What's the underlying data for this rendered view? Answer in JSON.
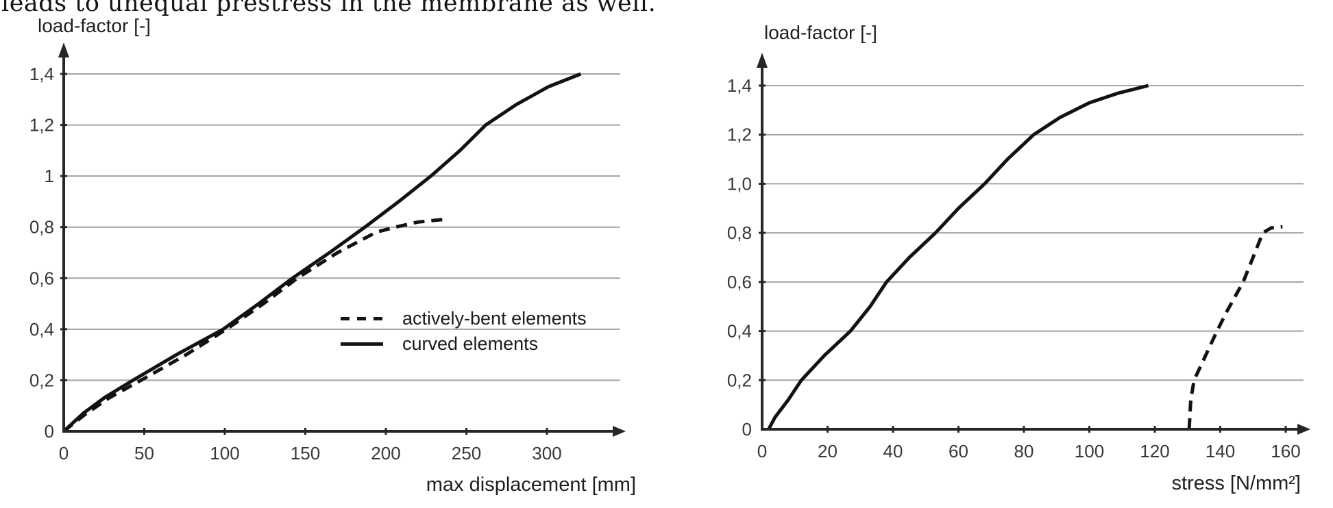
{
  "page": {
    "top_text": "leads to unequal prestress in the membrane as well."
  },
  "chart_data": [
    {
      "type": "line",
      "title": "load-factor [-]",
      "xlabel": "max displacement [mm]",
      "ylabel": "load-factor [-]",
      "xlim": [
        0,
        350
      ],
      "ylim": [
        0,
        1.5
      ],
      "grid": true,
      "legend_position": "inside-right-middle",
      "x_ticks": [
        {
          "v": 0,
          "label": "0"
        },
        {
          "v": 50,
          "label": "50"
        },
        {
          "v": 100,
          "label": "100"
        },
        {
          "v": 150,
          "label": "150"
        },
        {
          "v": 200,
          "label": "200"
        },
        {
          "v": 250,
          "label": "250"
        },
        {
          "v": 300,
          "label": "300"
        }
      ],
      "y_ticks": [
        {
          "v": 0,
          "label": "0"
        },
        {
          "v": 0.2,
          "label": "0,2"
        },
        {
          "v": 0.4,
          "label": "0,4"
        },
        {
          "v": 0.6,
          "label": "0,6"
        },
        {
          "v": 0.8,
          "label": "0,8"
        },
        {
          "v": 1,
          "label": "1"
        },
        {
          "v": 1.2,
          "label": "1,2"
        },
        {
          "v": 1.4,
          "label": "1,4"
        }
      ],
      "series": [
        {
          "name": "actively-bent elements",
          "style": "dashed",
          "points": [
            [
              0,
              0
            ],
            [
              13,
              0.065
            ],
            [
              28,
              0.13
            ],
            [
              48,
              0.2
            ],
            [
              76,
              0.3
            ],
            [
              101,
              0.4
            ],
            [
              124,
              0.5
            ],
            [
              145,
              0.6
            ],
            [
              170,
              0.7
            ],
            [
              194,
              0.78
            ],
            [
              206,
              0.8
            ],
            [
              220,
              0.82
            ],
            [
              236,
              0.83
            ]
          ]
        },
        {
          "name": "curved elements",
          "style": "solid",
          "points": [
            [
              0,
              0
            ],
            [
              12,
              0.07
            ],
            [
              26,
              0.135
            ],
            [
              43,
              0.2
            ],
            [
              70,
              0.3
            ],
            [
              99,
              0.4
            ],
            [
              121,
              0.5
            ],
            [
              142,
              0.6
            ],
            [
              165,
              0.7
            ],
            [
              187,
              0.8
            ],
            [
              208,
              0.9
            ],
            [
              228,
              1.0
            ],
            [
              246,
              1.1
            ],
            [
              262,
              1.2
            ],
            [
              281,
              1.28
            ],
            [
              301,
              1.35
            ],
            [
              321,
              1.4
            ]
          ]
        }
      ]
    },
    {
      "type": "line",
      "title": "load-factor [-]",
      "xlabel": "stress [N/mm²]",
      "ylabel": "load-factor [-]",
      "xlim": [
        0,
        170
      ],
      "ylim": [
        0,
        1.5
      ],
      "grid": true,
      "legend_position": "none",
      "x_ticks": [
        {
          "v": 0,
          "label": "0"
        },
        {
          "v": 20,
          "label": "20"
        },
        {
          "v": 40,
          "label": "40"
        },
        {
          "v": 60,
          "label": "60"
        },
        {
          "v": 80,
          "label": "80"
        },
        {
          "v": 100,
          "label": "100"
        },
        {
          "v": 120,
          "label": "120"
        },
        {
          "v": 140,
          "label": "140"
        },
        {
          "v": 160,
          "label": "160"
        }
      ],
      "y_ticks": [
        {
          "v": 0,
          "label": "0"
        },
        {
          "v": 0.2,
          "label": "0,2"
        },
        {
          "v": 0.4,
          "label": "0,4"
        },
        {
          "v": 0.6,
          "label": "0,6"
        },
        {
          "v": 0.8,
          "label": "0,8"
        },
        {
          "v": 1,
          "label": "1,0"
        },
        {
          "v": 1.2,
          "label": "1,2"
        },
        {
          "v": 1.4,
          "label": "1,4"
        }
      ],
      "series": [
        {
          "name": "curved elements",
          "style": "solid",
          "points": [
            [
              2,
              0
            ],
            [
              4,
              0.05
            ],
            [
              8,
              0.12
            ],
            [
              12,
              0.2
            ],
            [
              19,
              0.3
            ],
            [
              27,
              0.4
            ],
            [
              33,
              0.5
            ],
            [
              38,
              0.6
            ],
            [
              45,
              0.7
            ],
            [
              53,
              0.8
            ],
            [
              60,
              0.9
            ],
            [
              68,
              1.0
            ],
            [
              75,
              1.1
            ],
            [
              83,
              1.2
            ],
            [
              91,
              1.27
            ],
            [
              100,
              1.33
            ],
            [
              109,
              1.37
            ],
            [
              118,
              1.4
            ]
          ]
        },
        {
          "name": "actively-bent elements",
          "style": "dashed",
          "points": [
            [
              130.5,
              0
            ],
            [
              131,
              0.12
            ],
            [
              132,
              0.2
            ],
            [
              135.5,
              0.3
            ],
            [
              139,
              0.4
            ],
            [
              142,
              0.48
            ],
            [
              144.5,
              0.54
            ],
            [
              147,
              0.6
            ],
            [
              150,
              0.7
            ],
            [
              153,
              0.8
            ],
            [
              155.5,
              0.82
            ],
            [
              159,
              0.825
            ]
          ]
        }
      ]
    }
  ]
}
